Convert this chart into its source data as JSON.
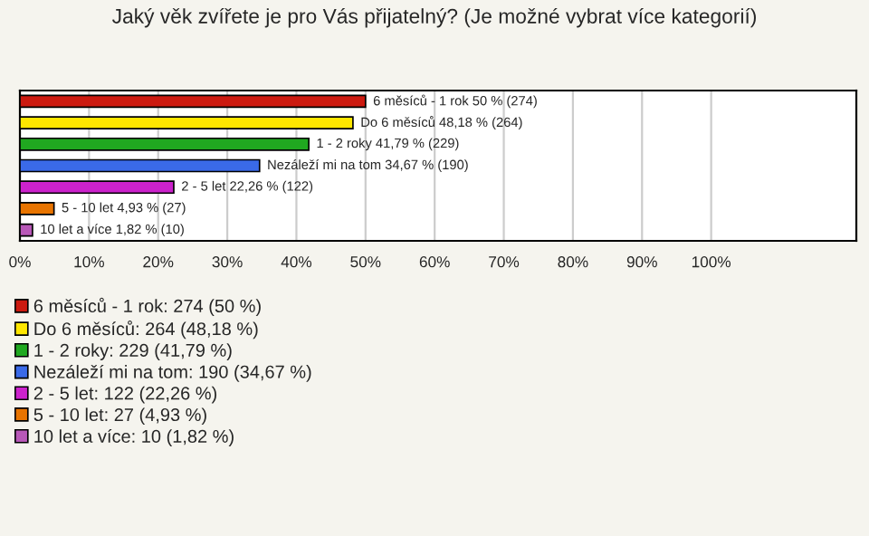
{
  "chart_data": {
    "type": "bar",
    "orientation": "horizontal",
    "title": "Jaký věk zvířete je pro Vás přijatelný? (Je možné vybrat více kategorií)",
    "categories": [
      null,
      null,
      null,
      null,
      null,
      null,
      null
    ],
    "series": [
      {
        "name": "6 měsíců - 1 rok: 274 (50 %)",
        "color": "#cc1a10",
        "values": [
          50,
          null,
          null,
          null,
          null,
          null,
          null
        ],
        "value_labels": [
          "6 měsíců - 1 rok 50 % (274)",
          null,
          null,
          null,
          null,
          null,
          null
        ]
      },
      {
        "name": "Do 6 měsíců: 264 (48,18 %)",
        "color": "#ffe600",
        "values": [
          null,
          48.18,
          null,
          null,
          null,
          null,
          null
        ],
        "value_labels": [
          null,
          "Do 6 měsíců 48,18 % (264)",
          null,
          null,
          null,
          null,
          null
        ]
      },
      {
        "name": "1 - 2 roky: 229 (41,79 %)",
        "color": "#20a820",
        "values": [
          null,
          null,
          41.79,
          null,
          null,
          null,
          null
        ],
        "value_labels": [
          null,
          null,
          "1 - 2 roky 41,79 % (229)",
          null,
          null,
          null,
          null
        ]
      },
      {
        "name": "Nezáleží mi na tom: 190 (34,67 %)",
        "color": "#3a6ae8",
        "values": [
          null,
          null,
          null,
          34.67,
          null,
          null,
          null
        ],
        "value_labels": [
          null,
          null,
          null,
          "Nezáleží mi na tom 34,67 % (190)",
          null,
          null,
          null
        ]
      },
      {
        "name": "2 - 5 let: 122 (22,26 %)",
        "color": "#cc22cc",
        "values": [
          null,
          null,
          null,
          null,
          22.26,
          null,
          null
        ],
        "value_labels": [
          null,
          null,
          null,
          null,
          "2 - 5 let 22,26 % (122)",
          null,
          null
        ]
      },
      {
        "name": "5 - 10 let: 27 (4,93 %)",
        "color": "#e87400",
        "values": [
          null,
          null,
          null,
          null,
          null,
          4.93,
          null
        ],
        "value_labels": [
          null,
          null,
          null,
          null,
          null,
          "5 - 10 let 4,93 % (27)",
          null
        ]
      },
      {
        "name": "10 let a více: 10 (1,82 %)",
        "color": "#b858b8",
        "values": [
          null,
          null,
          null,
          null,
          null,
          null,
          1.82
        ],
        "value_labels": [
          null,
          null,
          null,
          null,
          null,
          null,
          "10 let a více 1,82 % (10)"
        ]
      }
    ],
    "xlim": [
      0,
      121
    ],
    "xticks": [
      {
        "value": 0,
        "label": "0%"
      },
      {
        "value": 10,
        "label": "10%"
      },
      {
        "value": 20,
        "label": "20%"
      },
      {
        "value": 30,
        "label": "30%"
      },
      {
        "value": 40,
        "label": "40%"
      },
      {
        "value": 50,
        "label": "50%"
      },
      {
        "value": 60,
        "label": "60%"
      },
      {
        "value": 70,
        "label": "70%"
      },
      {
        "value": 80,
        "label": "80%"
      },
      {
        "value": 90,
        "label": "90%"
      },
      {
        "value": 100,
        "label": "100%"
      }
    ],
    "grid": "x",
    "legend": "bottom"
  }
}
